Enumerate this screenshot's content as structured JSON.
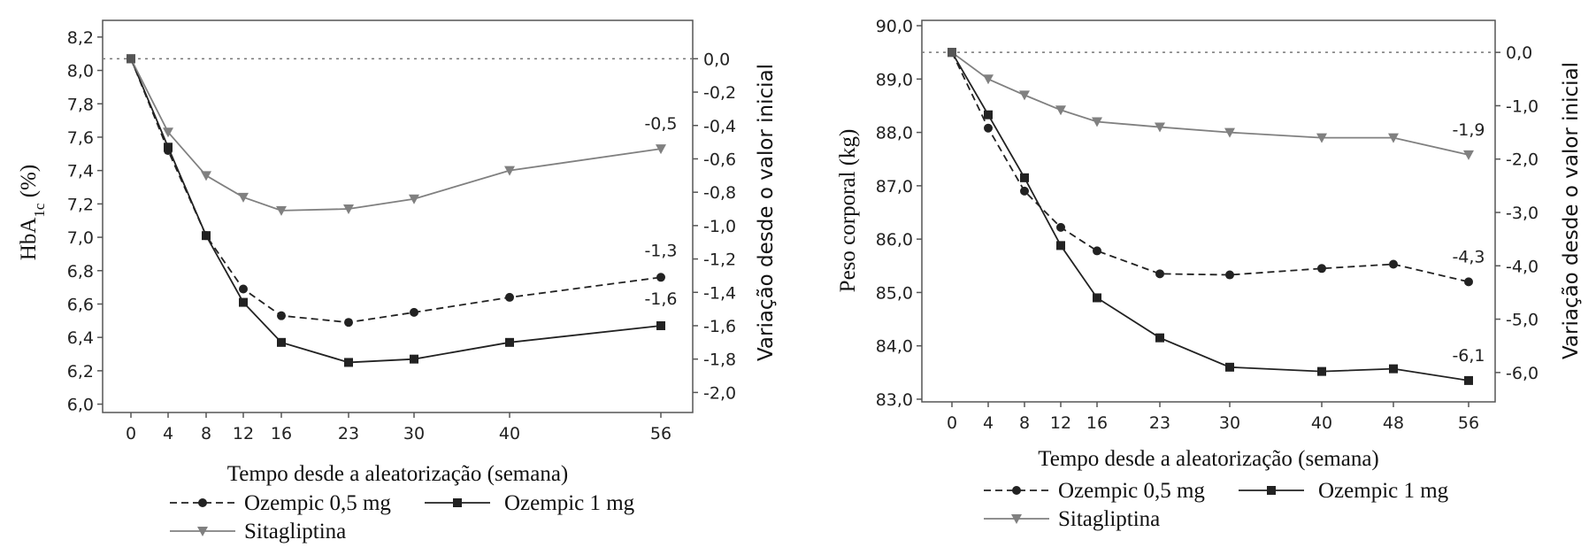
{
  "chart_data": [
    {
      "type": "line",
      "x": [
        0,
        4,
        8,
        12,
        16,
        23,
        30,
        40,
        56
      ],
      "xlabel": "Tempo desde a aleatorização (semana)",
      "ylabel_main": "HbA",
      "ylabel_sub": "1c",
      "ylabel_rest": " (%)",
      "ylabel_right": "Variação desde o valor inicial",
      "ylim": [
        5.95,
        8.3
      ],
      "yticks": [
        "6,0",
        "6,2",
        "6,4",
        "6,6",
        "6,8",
        "7,0",
        "7,2",
        "7,4",
        "7,6",
        "7,8",
        "8,0",
        "8,2"
      ],
      "ytick_values": [
        6.0,
        6.2,
        6.4,
        6.6,
        6.8,
        7.0,
        7.2,
        7.4,
        7.6,
        7.8,
        8.0,
        8.2
      ],
      "yticks_right": [
        "0,0",
        "-0,2",
        "-0,4",
        "-0,6",
        "-0,8",
        "-1,0",
        "-1,2",
        "-1,4",
        "-1,6",
        "-1,8",
        "-2,0"
      ],
      "ytick_right_values": [
        8.07,
        7.87,
        7.67,
        7.47,
        7.27,
        7.07,
        6.87,
        6.67,
        6.47,
        6.27,
        6.07
      ],
      "baseline": 8.07,
      "series": [
        {
          "name": "Ozempic 0,5 mg",
          "style": "dashed",
          "marker": "circle",
          "color": "#222222",
          "values": [
            8.07,
            7.52,
            7.01,
            6.69,
            6.53,
            6.49,
            6.55,
            6.64,
            6.76
          ],
          "end_label": "-1,3"
        },
        {
          "name": "Ozempic 1 mg",
          "style": "solid",
          "marker": "square",
          "color": "#222222",
          "values": [
            8.07,
            7.54,
            7.01,
            6.61,
            6.37,
            6.25,
            6.27,
            6.37,
            6.47
          ],
          "end_label": "-1,6"
        },
        {
          "name": "Sitagliptina",
          "style": "solid",
          "marker": "triangle",
          "color": "#808080",
          "values": [
            8.07,
            7.63,
            7.37,
            7.24,
            7.16,
            7.17,
            7.23,
            7.4,
            7.53
          ],
          "end_label": "-0,5"
        }
      ]
    },
    {
      "type": "line",
      "x": [
        0,
        4,
        8,
        12,
        16,
        23,
        30,
        40,
        48,
        56
      ],
      "xlabel": "Tempo desde a aleatorização (semana)",
      "ylabel_main": "Peso corporal (kg)",
      "ylabel_sub": "",
      "ylabel_rest": "",
      "ylabel_right": "Variação desde o valor inicial",
      "ylim": [
        82.95,
        90.1
      ],
      "yticks": [
        "83,0",
        "84,0",
        "85,0",
        "86,0",
        "87,0",
        "88,0",
        "89,0",
        "90,0"
      ],
      "ytick_values": [
        83,
        84,
        85,
        86,
        87,
        88,
        89,
        90
      ],
      "yticks_right": [
        "0,0",
        "-1,0",
        "-2,0",
        "-3,0",
        "-4,0",
        "-5,0",
        "-6,0"
      ],
      "ytick_right_values": [
        89.5,
        88.5,
        87.5,
        86.5,
        85.5,
        84.5,
        83.5
      ],
      "baseline": 89.5,
      "series": [
        {
          "name": "Ozempic 0,5 mg",
          "style": "dashed",
          "marker": "circle",
          "color": "#222222",
          "values": [
            89.5,
            88.08,
            86.9,
            86.22,
            85.78,
            85.35,
            85.33,
            85.45,
            85.53,
            85.2
          ],
          "end_label": "-4,3"
        },
        {
          "name": "Ozempic 1 mg",
          "style": "solid",
          "marker": "square",
          "color": "#222222",
          "values": [
            89.5,
            88.33,
            87.15,
            85.88,
            84.9,
            84.15,
            83.6,
            83.52,
            83.57,
            83.35
          ],
          "end_label": "-6,1"
        },
        {
          "name": "Sitagliptina",
          "style": "solid",
          "marker": "triangle",
          "color": "#808080",
          "values": [
            89.5,
            89.0,
            88.7,
            88.42,
            88.2,
            88.1,
            88.0,
            87.9,
            87.9,
            87.58
          ],
          "end_label": "-1,9"
        }
      ]
    }
  ]
}
